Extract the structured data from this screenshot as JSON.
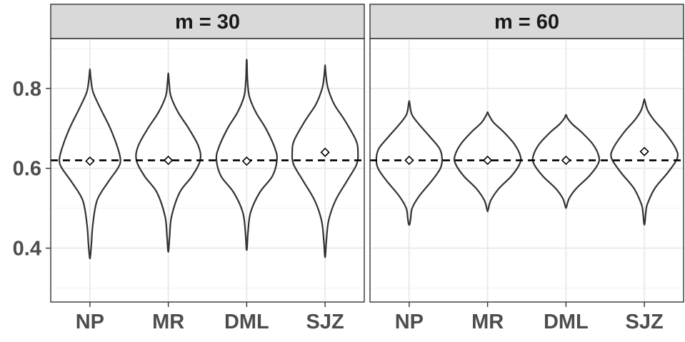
{
  "chart_data": {
    "type": "violin",
    "facet_variable": "m",
    "reference_line": 0.62,
    "ylim": [
      0.265,
      0.925
    ],
    "y_ticks": [
      0.4,
      0.6,
      0.8
    ],
    "y_tick_labels": [
      "0.4",
      "0.6",
      "0.8"
    ],
    "categories": [
      "NP",
      "MR",
      "DML",
      "SJZ"
    ],
    "grid": true,
    "panels": [
      {
        "strip_label": "m = 30",
        "violins": [
          {
            "category": "NP",
            "min": 0.378,
            "max": 0.845,
            "mean": 0.618,
            "halfwidth": [
              [
                0.378,
                0.01
              ],
              [
                0.41,
                0.045
              ],
              [
                0.46,
                0.09
              ],
              [
                0.52,
                0.22
              ],
              [
                0.565,
                0.55
              ],
              [
                0.6,
                0.85
              ],
              [
                0.62,
                0.93
              ],
              [
                0.65,
                0.85
              ],
              [
                0.7,
                0.62
              ],
              [
                0.75,
                0.32
              ],
              [
                0.79,
                0.1
              ],
              [
                0.82,
                0.035
              ],
              [
                0.845,
                0.005
              ]
            ]
          },
          {
            "category": "MR",
            "min": 0.395,
            "max": 0.835,
            "mean": 0.62,
            "halfwidth": [
              [
                0.395,
                0.01
              ],
              [
                0.43,
                0.04
              ],
              [
                0.48,
                0.1
              ],
              [
                0.54,
                0.35
              ],
              [
                0.58,
                0.72
              ],
              [
                0.62,
                0.97
              ],
              [
                0.655,
                0.92
              ],
              [
                0.7,
                0.62
              ],
              [
                0.74,
                0.3
              ],
              [
                0.78,
                0.08
              ],
              [
                0.81,
                0.03
              ],
              [
                0.835,
                0.005
              ]
            ]
          },
          {
            "category": "DML",
            "min": 0.4,
            "max": 0.87,
            "mean": 0.618,
            "halfwidth": [
              [
                0.4,
                0.01
              ],
              [
                0.44,
                0.04
              ],
              [
                0.49,
                0.12
              ],
              [
                0.54,
                0.4
              ],
              [
                0.58,
                0.78
              ],
              [
                0.62,
                0.92
              ],
              [
                0.65,
                0.86
              ],
              [
                0.7,
                0.58
              ],
              [
                0.74,
                0.28
              ],
              [
                0.78,
                0.08
              ],
              [
                0.82,
                0.025
              ],
              [
                0.85,
                0.012
              ],
              [
                0.87,
                0.004
              ]
            ]
          },
          {
            "category": "SJZ",
            "min": 0.382,
            "max": 0.855,
            "mean": 0.64,
            "halfwidth": [
              [
                0.382,
                0.01
              ],
              [
                0.42,
                0.04
              ],
              [
                0.47,
                0.11
              ],
              [
                0.52,
                0.32
              ],
              [
                0.57,
                0.68
              ],
              [
                0.61,
                0.96
              ],
              [
                0.64,
                1.0
              ],
              [
                0.67,
                0.94
              ],
              [
                0.72,
                0.6
              ],
              [
                0.76,
                0.28
              ],
              [
                0.8,
                0.09
              ],
              [
                0.83,
                0.03
              ],
              [
                0.855,
                0.004
              ]
            ]
          }
        ]
      },
      {
        "strip_label": "m = 60",
        "violins": [
          {
            "category": "NP",
            "min": 0.46,
            "max": 0.765,
            "mean": 0.62,
            "halfwidth": [
              [
                0.46,
                0.015
              ],
              [
                0.475,
                0.045
              ],
              [
                0.5,
                0.09
              ],
              [
                0.53,
                0.3
              ],
              [
                0.57,
                0.7
              ],
              [
                0.6,
                0.95
              ],
              [
                0.625,
                1.0
              ],
              [
                0.65,
                0.92
              ],
              [
                0.68,
                0.62
              ],
              [
                0.71,
                0.3
              ],
              [
                0.735,
                0.08
              ],
              [
                0.765,
                0.01
              ]
            ]
          },
          {
            "category": "MR",
            "min": 0.495,
            "max": 0.74,
            "mean": 0.62,
            "halfwidth": [
              [
                0.495,
                0.012
              ],
              [
                0.52,
                0.1
              ],
              [
                0.55,
                0.35
              ],
              [
                0.58,
                0.72
              ],
              [
                0.61,
                0.97
              ],
              [
                0.63,
                1.0
              ],
              [
                0.66,
                0.82
              ],
              [
                0.69,
                0.5
              ],
              [
                0.715,
                0.18
              ],
              [
                0.735,
                0.03
              ],
              [
                0.74,
                0.01
              ]
            ]
          },
          {
            "category": "DML",
            "min": 0.503,
            "max": 0.733,
            "mean": 0.62,
            "halfwidth": [
              [
                0.503,
                0.012
              ],
              [
                0.525,
                0.1
              ],
              [
                0.55,
                0.32
              ],
              [
                0.58,
                0.7
              ],
              [
                0.61,
                0.97
              ],
              [
                0.63,
                1.0
              ],
              [
                0.66,
                0.82
              ],
              [
                0.69,
                0.48
              ],
              [
                0.71,
                0.2
              ],
              [
                0.725,
                0.05
              ],
              [
                0.733,
                0.01
              ]
            ]
          },
          {
            "category": "SJZ",
            "min": 0.462,
            "max": 0.77,
            "mean": 0.642,
            "halfwidth": [
              [
                0.462,
                0.012
              ],
              [
                0.49,
                0.045
              ],
              [
                0.51,
                0.09
              ],
              [
                0.55,
                0.32
              ],
              [
                0.59,
                0.72
              ],
              [
                0.625,
                1.0
              ],
              [
                0.65,
                0.95
              ],
              [
                0.69,
                0.62
              ],
              [
                0.72,
                0.3
              ],
              [
                0.745,
                0.1
              ],
              [
                0.77,
                0.01
              ]
            ]
          }
        ]
      }
    ]
  }
}
